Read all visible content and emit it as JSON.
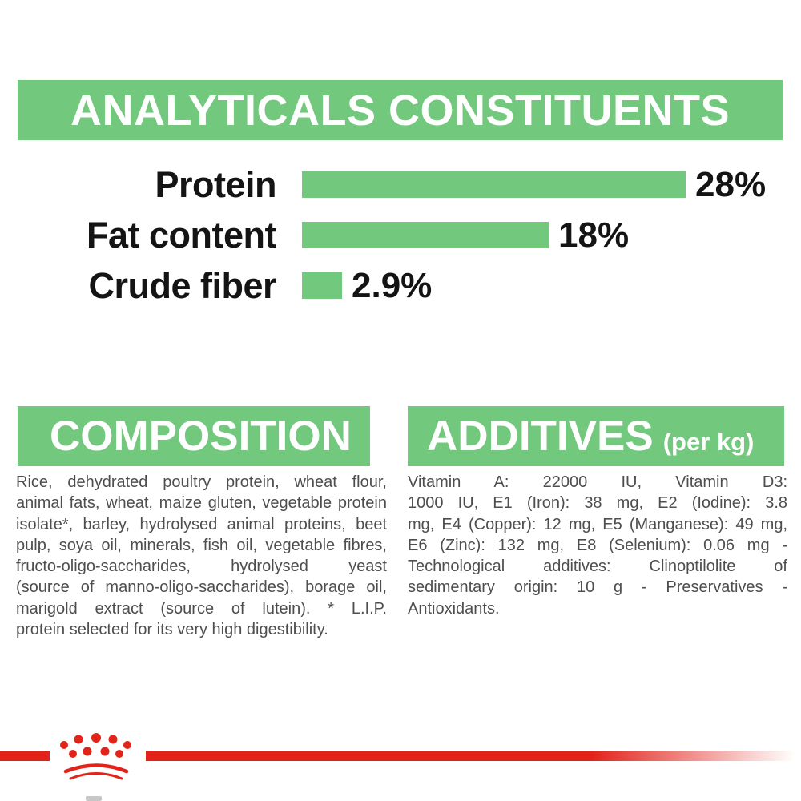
{
  "page": {
    "background": "#ffffff",
    "accent_green": "#72c87d",
    "brand_red": "#e2231a"
  },
  "analytical_header": {
    "title": "ANALYTICALS CONSTITUENTS"
  },
  "chart_data": {
    "type": "bar",
    "orientation": "horizontal",
    "title": "ANALYTICALS CONSTITUENTS",
    "categories": [
      "Protein",
      "Fat content",
      "Crude fiber"
    ],
    "values": [
      28,
      18,
      2.9
    ],
    "value_labels": [
      "28%",
      "18%",
      "2.9%"
    ],
    "xlabel": "",
    "ylabel": "",
    "xlim": [
      0,
      28
    ],
    "grid": false,
    "legend": false,
    "bar_color": "#72c87d"
  },
  "composition": {
    "title": "COMPOSITION",
    "lines": [
      "Rice, dehydrated poultry protein, wheat flour,",
      "animal fats, wheat, maize gluten, vegetable protein",
      "isolate*, barley, hydrolysed animal proteins, beet",
      "pulp, soya oil, minerals, fish oil, vegetable fibres,",
      "fructo-oligo-saccharides, hydrolysed yeast",
      "(source of manno-oligo-saccharides), borage oil,",
      "marigold extract (source of lutein). * L.I.P.",
      "protein selected for its very high digestibility."
    ]
  },
  "additives": {
    "title": "ADDITIVES",
    "subtitle": "(per kg)",
    "lines": [
      "Vitamin A: 22000 IU, Vitamin D3:",
      "1000 IU, E1 (Iron): 38 mg, E2 (Iodine): 3.8",
      "mg, E4 (Copper): 12 mg, E5 (Manganese): 49 mg,",
      "E6 (Zinc): 132 mg, E8 (Selenium): 0.06 mg -",
      "Technological additives: Clinoptilolite of",
      "sedimentary origin: 10 g - Preservatives -",
      "Antioxidants."
    ]
  },
  "footer": {
    "logo": "royal-canin-crown",
    "line_color": "#e2231a"
  }
}
